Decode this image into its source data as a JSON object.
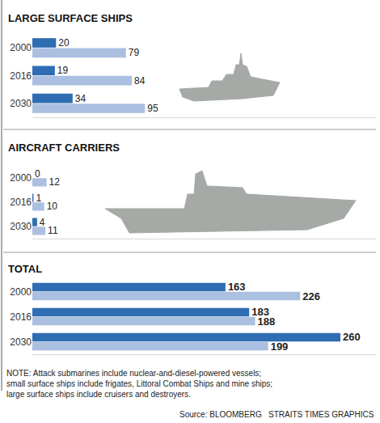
{
  "chart_data": [
    {
      "type": "bar",
      "orientation": "horizontal",
      "title": "LARGE SURFACE SHIPS",
      "categories": [
        "2000",
        "2016",
        "2030"
      ],
      "series": [
        {
          "color": "#2f6db3",
          "values": [
            20,
            19,
            34
          ]
        },
        {
          "color": "#abbfe1",
          "values": [
            79,
            84,
            95
          ]
        }
      ],
      "xlim": [
        0,
        290
      ],
      "xticks": [],
      "tick_labels": "y",
      "data_labels": true,
      "grid": false
    },
    {
      "type": "bar",
      "orientation": "horizontal",
      "title": "AIRCRAFT CARRIERS",
      "categories": [
        "2000",
        "2016",
        "2030"
      ],
      "series": [
        {
          "color": "#2f6db3",
          "values": [
            0,
            1,
            4
          ]
        },
        {
          "color": "#abbfe1",
          "values": [
            12,
            10,
            11
          ]
        }
      ],
      "xlim": [
        0,
        290
      ],
      "xticks": [],
      "tick_labels": "y",
      "data_labels": true,
      "grid": false
    },
    {
      "type": "bar",
      "orientation": "horizontal",
      "title": "TOTAL",
      "categories": [
        "2000",
        "2016",
        "2030"
      ],
      "series": [
        {
          "color": "#2f6db3",
          "values": [
            163,
            183,
            260
          ]
        },
        {
          "color": "#abbfe1",
          "values": [
            226,
            188,
            199
          ]
        }
      ],
      "xlim": [
        0,
        290
      ],
      "xticks": [],
      "tick_labels": "y",
      "data_labels": true,
      "grid": false
    }
  ],
  "note": [
    "NOTE: Attack submarines include nuclear-and-diesel-powered vessels;",
    "small surface ships include frigates, Littoral Combat Ships and mine ships;",
    "large surface ships include cruisers and destroyers."
  ],
  "source": [
    "Source: BLOOMBERG",
    "STRAITS TIMES GRAPHICS"
  ]
}
